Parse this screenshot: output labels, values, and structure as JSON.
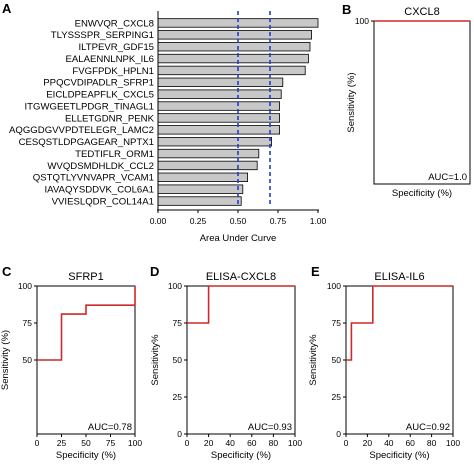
{
  "panels": {
    "A": {
      "letter": "A"
    },
    "B": {
      "letter": "B"
    },
    "C": {
      "letter": "C"
    },
    "D": {
      "letter": "D"
    },
    "E": {
      "letter": "E"
    }
  },
  "colors": {
    "bar_fill": "#c8c8c8",
    "bar_stroke": "#000000",
    "threshold_line": "#1f3fd0",
    "roc_line": "#cc2a2a"
  },
  "chart_data": [
    {
      "panel": "A",
      "type": "bar",
      "orientation": "horizontal",
      "categories": [
        "ENWVQR_CXCL8",
        "TLYSSSPR_SERPING1",
        "ILTPEVR_GDF15",
        "EALAENNLNPK_IL6",
        "FVGFPDK_HPLN1",
        "PPQCVDIPADLR_SFRP1",
        "EICLDPEAPFLK_CXCL5",
        "ITGWGEETLPDGR_TINAGL1",
        "ELLETGDNR_PENK",
        "AQGGDGVVPDTELEGR_LAMC2",
        "CESQSTLDPGAGEAR_NPTX1",
        "TEDTIFLR_ORM1",
        "WVQDSMDHLDK_CCL2",
        "QSTQTLYVNVAPR_VCAM1",
        "IAVAQYSDDVK_COL6A1",
        "VVIESLQDR_COL14A1"
      ],
      "values": [
        1.0,
        0.96,
        0.95,
        0.94,
        0.92,
        0.78,
        0.77,
        0.76,
        0.76,
        0.76,
        0.71,
        0.63,
        0.62,
        0.56,
        0.53,
        0.52
      ],
      "xlabel": "Area Under Curve",
      "xlim": [
        0.0,
        1.0
      ],
      "xticks": [
        "0.00",
        "0.25",
        "0.50",
        "0.75",
        "1.00"
      ],
      "reference_lines": [
        0.5,
        0.7
      ]
    },
    {
      "panel": "B",
      "type": "line",
      "title": "CXCL8",
      "xlabel": "Specificity (%)",
      "ylabel": "Sensitivity (%)",
      "xlim": [
        0,
        100
      ],
      "ylim": [
        0,
        100
      ],
      "xticks": [],
      "yticks": [
        "100"
      ],
      "annotation": "AUC=1.0",
      "series": [
        {
          "x": [
            0,
            100
          ],
          "y": [
            100,
            100
          ]
        }
      ]
    },
    {
      "panel": "C",
      "type": "line",
      "title": "SFRP1",
      "xlabel": "Specificity (%)",
      "ylabel": "Sensitivity (%)",
      "xlim": [
        0,
        100
      ],
      "ylim": [
        0,
        100
      ],
      "xticks": [
        "0",
        "25",
        "50",
        "75",
        "100"
      ],
      "yticks": [
        "50",
        "75",
        "100"
      ],
      "annotation": "AUC=0.78",
      "series": [
        {
          "x": [
            0,
            25,
            25,
            50,
            50,
            100,
            100
          ],
          "y": [
            50,
            50,
            81,
            81,
            87,
            87,
            100
          ]
        }
      ]
    },
    {
      "panel": "D",
      "type": "line",
      "title": "ELISA-CXCL8",
      "xlabel": "Specificity (%)",
      "ylabel": "Sensitivity%",
      "xlim": [
        0,
        100
      ],
      "ylim": [
        0,
        100
      ],
      "xticks": [
        "0",
        "20",
        "40",
        "60",
        "80",
        "100"
      ],
      "yticks": [
        "0",
        "25",
        "50",
        "75",
        "100"
      ],
      "annotation": "AUC=0.93",
      "series": [
        {
          "x": [
            0,
            20,
            20,
            100
          ],
          "y": [
            75,
            75,
            100,
            100
          ]
        }
      ]
    },
    {
      "panel": "E",
      "type": "line",
      "title": "ELISA-IL6",
      "xlabel": "Specificity (%)",
      "ylabel": "Sensitivity%",
      "xlim": [
        0,
        100
      ],
      "ylim": [
        0,
        100
      ],
      "xticks": [
        "0",
        "20",
        "40",
        "60",
        "80",
        "100"
      ],
      "yticks": [
        "0",
        "25",
        "50",
        "75",
        "100"
      ],
      "annotation": "AUC=0.92",
      "series": [
        {
          "x": [
            0,
            5,
            5,
            25,
            25,
            100
          ],
          "y": [
            50,
            50,
            75,
            75,
            100,
            100
          ]
        }
      ]
    }
  ]
}
